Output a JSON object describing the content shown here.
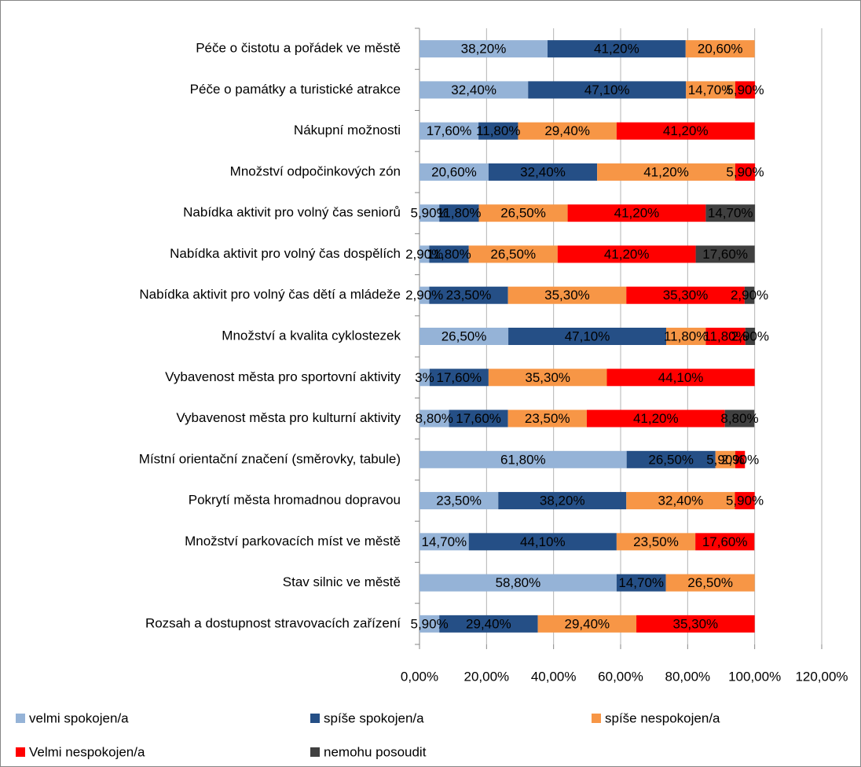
{
  "chart_data": {
    "type": "stacked-bar-horizontal",
    "categories": [
      "Péče o čistotu a pořádek ve městě",
      "Péče o památky a turistické atrakce",
      "Nákupní možnosti",
      "Množství odpočinkových zón",
      "Nabídka aktivit pro volný čas seniorů",
      "Nabídka aktivit pro volný čas dospělích",
      "Nabídka aktivit pro volný čas dětí a mládeže",
      "Množství a kvalita cyklostezek",
      "Vybavenost města pro sportovní aktivity",
      "Vybavenost města pro kulturní aktivity",
      "Místní orientační značení (směrovky, tabule)",
      "Pokrytí města hromadnou dopravou",
      "Množství parkovacích míst ve městě",
      "Stav silnic ve městě",
      "Rozsah  a dostupnost stravovacích zařízení"
    ],
    "series": [
      {
        "name": "velmi spokojen/a",
        "color": "#95b3d7",
        "values": [
          38.2,
          32.4,
          17.6,
          20.6,
          5.9,
          2.9,
          2.9,
          26.5,
          3,
          8.8,
          61.8,
          23.5,
          14.7,
          58.8,
          5.9
        ],
        "value_labels": [
          "38,20%",
          "32,40%",
          "17,60%",
          "20,60%",
          "5,90%",
          "2,90%",
          "2,90%",
          "26,50%",
          "3%",
          "8,80%",
          "61,80%",
          "23,50%",
          "14,70%",
          "58,80%",
          "5,90%"
        ]
      },
      {
        "name": "spíše spokojen/a",
        "color": "#254f86",
        "values": [
          41.2,
          47.1,
          11.8,
          32.4,
          11.8,
          11.8,
          23.5,
          47.1,
          17.6,
          17.6,
          26.5,
          38.2,
          44.1,
          14.7,
          29.4
        ],
        "value_labels": [
          "41,20%",
          "47,10%",
          "11,80%",
          "32,40%",
          "11,80%",
          "11,80%",
          "23,50%",
          "47,10%",
          "17,60%",
          "17,60%",
          "26,50%",
          "38,20%",
          "44,10%",
          "14,70%",
          "29,40%"
        ]
      },
      {
        "name": "spíše nespokojen/a",
        "color": "#f79646",
        "values": [
          20.6,
          14.7,
          29.4,
          41.2,
          26.5,
          26.5,
          35.3,
          11.8,
          35.3,
          23.5,
          5.9,
          32.4,
          23.5,
          26.5,
          29.4
        ],
        "value_labels": [
          "20,60%",
          "14,70%",
          "29,40%",
          "41,20%",
          "26,50%",
          "26,50%",
          "35,30%",
          "11,80%",
          "35,30%",
          "23,50%",
          "5,90%",
          "32,40%",
          "23,50%",
          "26,50%",
          "29,40%"
        ]
      },
      {
        "name": "Velmi nespokojen/a",
        "color": "#ff0000",
        "values": [
          null,
          5.9,
          41.2,
          5.9,
          41.2,
          41.2,
          35.3,
          11.8,
          44.1,
          41.2,
          2.9,
          5.9,
          17.6,
          null,
          35.3
        ],
        "value_labels": [
          null,
          "5,90%",
          "41,20%",
          "5,90%",
          "41,20%",
          "41,20%",
          "35,30%",
          "11,80%",
          "44,10%",
          "41,20%",
          "2,90%",
          "5,90%",
          "17,60%",
          null,
          "35,30%"
        ]
      },
      {
        "name": "nemohu posoudit",
        "color": "#404040",
        "values": [
          null,
          null,
          null,
          null,
          14.7,
          17.6,
          2.9,
          2.9,
          null,
          8.8,
          null,
          null,
          null,
          null,
          null
        ],
        "value_labels": [
          null,
          null,
          null,
          null,
          "14,70%",
          "17,60%",
          "2,90%",
          "2,90%",
          null,
          "8,80%",
          null,
          null,
          null,
          null,
          null
        ]
      }
    ],
    "xlim": [
      0,
      120
    ],
    "xticks": [
      {
        "value": 0,
        "label": "0,00%"
      },
      {
        "value": 20,
        "label": "20,00%"
      },
      {
        "value": 40,
        "label": "40,00%"
      },
      {
        "value": 60,
        "label": "60,00%"
      },
      {
        "value": 80,
        "label": "80,00%"
      },
      {
        "value": 100,
        "label": "100,00%"
      },
      {
        "value": 120,
        "label": "120,00%"
      }
    ],
    "grid": true,
    "legend": "bottom"
  }
}
